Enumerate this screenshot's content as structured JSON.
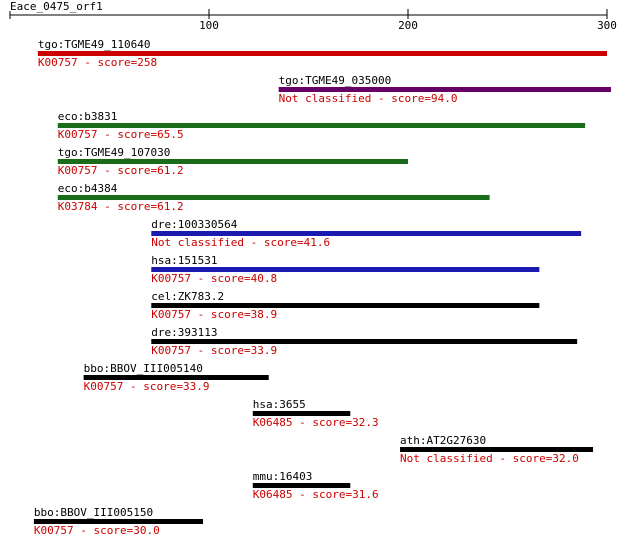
{
  "chart_data": {
    "type": "range",
    "title": "Eace_0475_orf1",
    "xlim": [
      0,
      300
    ],
    "xticks": [
      100,
      200,
      300
    ],
    "rows": [
      {
        "name": "tgo:TGME49_110640",
        "label": "K00757 - score=258",
        "start": 14,
        "end": 300,
        "color": "#cc0000"
      },
      {
        "name": "tgo:TGME49_035000",
        "label": "Not classified - score=94.0",
        "start": 135,
        "end": 302,
        "color": "#660066"
      },
      {
        "name": "eco:b3831",
        "label": "K00757 - score=65.5",
        "start": 24,
        "end": 289,
        "color": "#1a6b1a"
      },
      {
        "name": "tgo:TGME49_107030",
        "label": "K00757 - score=61.2",
        "start": 24,
        "end": 200,
        "color": "#1a6b1a"
      },
      {
        "name": "eco:b4384",
        "label": "K03784 - score=61.2",
        "start": 24,
        "end": 241,
        "color": "#1a6b1a"
      },
      {
        "name": "dre:100330564",
        "label": "Not classified - score=41.6",
        "start": 71,
        "end": 287,
        "color": "#1a1ab0"
      },
      {
        "name": "hsa:151531",
        "label": "K00757 - score=40.8",
        "start": 71,
        "end": 266,
        "color": "#1a1ab0"
      },
      {
        "name": "cel:ZK783.2",
        "label": "K00757 - score=38.9",
        "start": 71,
        "end": 266,
        "color": "#000000"
      },
      {
        "name": "dre:393113",
        "label": "K00757 - score=33.9",
        "start": 71,
        "end": 285,
        "color": "#000000"
      },
      {
        "name": "bbo:BBOV_III005140",
        "label": "K00757 - score=33.9",
        "start": 37,
        "end": 130,
        "color": "#000000"
      },
      {
        "name": "hsa:3655",
        "label": "K06485 - score=32.3",
        "start": 122,
        "end": 171,
        "color": "#000000"
      },
      {
        "name": "ath:AT2G27630",
        "label": "Not classified - score=32.0",
        "start": 196,
        "end": 293,
        "color": "#000000"
      },
      {
        "name": "mmu:16403",
        "label": "K06485 - score=31.6",
        "start": 122,
        "end": 171,
        "color": "#000000"
      },
      {
        "name": "bbo:BBOV_III005150",
        "label": "K00757 - score=30.0",
        "start": 12,
        "end": 97,
        "color": "#000000"
      }
    ]
  }
}
